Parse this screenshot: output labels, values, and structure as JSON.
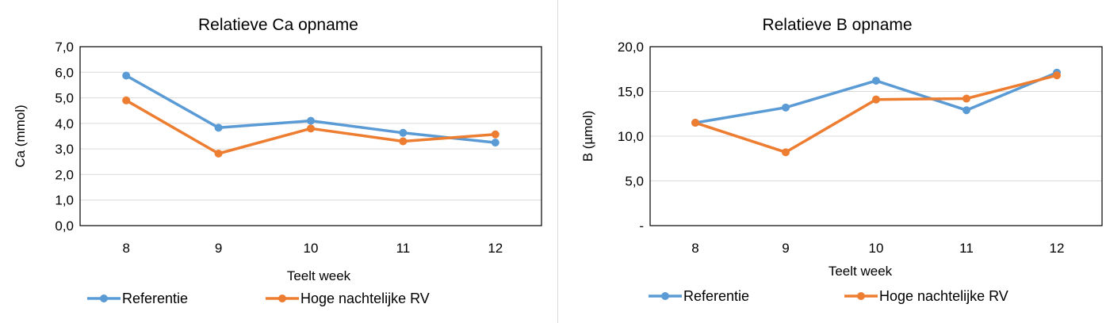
{
  "chart_data": [
    {
      "type": "line",
      "title": "Relatieve Ca opname",
      "xlabel": "Teelt week",
      "ylabel": "Ca (mmol)",
      "categories": [
        "8",
        "9",
        "10",
        "11",
        "12"
      ],
      "ylim": [
        0,
        7
      ],
      "yticks": [
        "0,0",
        "1,0",
        "2,0",
        "3,0",
        "4,0",
        "5,0",
        "6,0",
        "7,0"
      ],
      "grid": true,
      "legend": "bottom",
      "series": [
        {
          "name": "Referentie",
          "color": "#5B9BD5",
          "values": [
            5.87,
            3.83,
            4.1,
            3.63,
            3.25
          ]
        },
        {
          "name": "Hoge nachtelijke RV",
          "color": "#ED7D31",
          "values": [
            4.9,
            2.82,
            3.8,
            3.3,
            3.57
          ]
        }
      ]
    },
    {
      "type": "line",
      "title": "Relatieve B opname",
      "xlabel": "Teelt week",
      "ylabel": "B (µmol)",
      "categories": [
        "8",
        "9",
        "10",
        "11",
        "12"
      ],
      "ylim": [
        0,
        20
      ],
      "yticks": [
        "-",
        "5,0",
        "10,0",
        "15,0",
        "20,0"
      ],
      "grid": true,
      "legend": "bottom",
      "series": [
        {
          "name": "Referentie",
          "color": "#5B9BD5",
          "values": [
            11.5,
            13.2,
            16.2,
            12.9,
            17.1
          ]
        },
        {
          "name": "Hoge nachtelijke RV",
          "color": "#ED7D31",
          "values": [
            11.5,
            8.2,
            14.1,
            14.2,
            16.8
          ]
        }
      ]
    }
  ]
}
